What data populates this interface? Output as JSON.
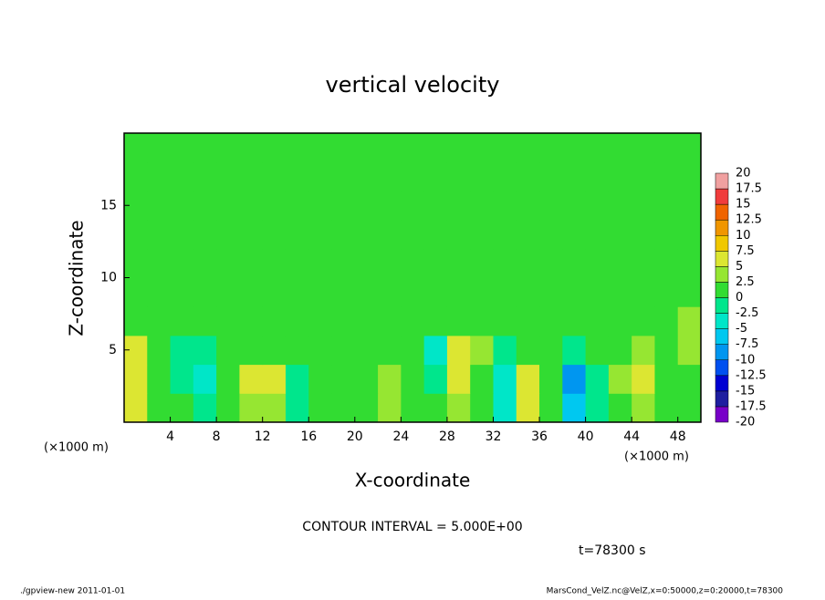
{
  "chart_data": {
    "type": "heatmap",
    "title": "vertical velocity",
    "x_label": "X-coordinate",
    "y_label": "Z-coordinate",
    "x_unit_label": "(×1000 m)",
    "y_unit_label": "(×1000 m)",
    "annotation": "CONTOUR INTERVAL = 5.000E+00",
    "time_label": "t=78300 s",
    "footer_left": "./gpview-new   2011-01-01",
    "footer_right": "MarsCond_VelZ.nc@VelZ,x=0:50000,z=0:20000,t=78300",
    "xlim": [
      0,
      50
    ],
    "xticks": [
      4,
      8,
      12,
      16,
      20,
      24,
      28,
      32,
      36,
      40,
      44,
      48
    ],
    "ylim": [
      0,
      20
    ],
    "yticks": [
      5,
      10,
      15
    ],
    "x": [
      1,
      3,
      5,
      7,
      9,
      11,
      13,
      15,
      17,
      19,
      21,
      23,
      25,
      27,
      29,
      31,
      33,
      35,
      37,
      39,
      41,
      43,
      45,
      47,
      49
    ],
    "z": [
      1,
      3,
      5,
      7,
      9,
      11,
      13,
      15,
      17,
      19
    ],
    "values": [
      [
        6,
        2,
        0,
        -1,
        1,
        4,
        3,
        -2,
        1,
        1,
        2,
        3,
        2,
        1,
        3,
        2,
        -3,
        5,
        1,
        -6,
        -1,
        2,
        4,
        1,
        1
      ],
      [
        7,
        2,
        -2,
        -3,
        1,
        6,
        5,
        -2,
        0,
        1,
        2,
        4,
        1,
        -2,
        6,
        2,
        -4,
        6,
        1,
        -8,
        -2,
        3,
        6,
        1,
        2
      ],
      [
        5,
        2,
        -1,
        -2,
        0,
        2,
        2,
        0,
        1,
        1,
        1,
        2,
        0,
        -3,
        5,
        3,
        -1,
        2,
        0,
        -2,
        0,
        1,
        3,
        1,
        3
      ],
      [
        2,
        1,
        0,
        0,
        0,
        1,
        1,
        0,
        0,
        1,
        1,
        1,
        0,
        0,
        2,
        1,
        0,
        0,
        0,
        0,
        0,
        1,
        1,
        1,
        3
      ],
      [
        1,
        1,
        1,
        0,
        1,
        1,
        0,
        0,
        1,
        0,
        1,
        1,
        0,
        1,
        1,
        1,
        1,
        0,
        1,
        1,
        1,
        1,
        1,
        0,
        1
      ],
      [
        1,
        1,
        0,
        1,
        1,
        1,
        1,
        0,
        1,
        1,
        1,
        0,
        1,
        1,
        1,
        1,
        0,
        1,
        1,
        1,
        0,
        1,
        1,
        1,
        1
      ],
      [
        1,
        0,
        1,
        1,
        0,
        1,
        1,
        1,
        0,
        1,
        1,
        1,
        1,
        0,
        1,
        1,
        1,
        1,
        0,
        1,
        1,
        0,
        1,
        1,
        1
      ],
      [
        1,
        1,
        1,
        0,
        1,
        1,
        0,
        1,
        1,
        1,
        0,
        1,
        1,
        1,
        1,
        0,
        1,
        1,
        1,
        1,
        1,
        1,
        0,
        1,
        1
      ],
      [
        0,
        1,
        1,
        1,
        1,
        0,
        1,
        1,
        1,
        1,
        1,
        0,
        1,
        1,
        0,
        1,
        1,
        1,
        0,
        1,
        1,
        1,
        1,
        1,
        0
      ],
      [
        1,
        1,
        0,
        1,
        1,
        1,
        1,
        0,
        1,
        1,
        1,
        1,
        1,
        0,
        1,
        1,
        1,
        1,
        1,
        0,
        1,
        1,
        1,
        1,
        1
      ]
    ],
    "levels": [
      -20,
      -17.5,
      -15,
      -12.5,
      -10,
      -7.5,
      -5,
      -2.5,
      0,
      2.5,
      5,
      7.5,
      10,
      12.5,
      15,
      17.5,
      20
    ],
    "colors": [
      "#7800c8",
      "#1e1ea0",
      "#0000d2",
      "#0050f0",
      "#0096f0",
      "#00c8f0",
      "#00e6c8",
      "#00e68c",
      "#32dc32",
      "#96e632",
      "#dce632",
      "#f0c800",
      "#f09600",
      "#f06400",
      "#f03c3c",
      "#f0a0a0"
    ]
  }
}
